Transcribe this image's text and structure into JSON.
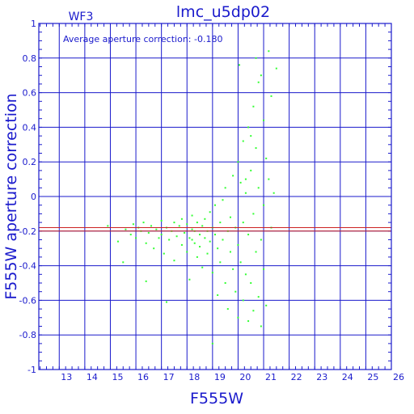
{
  "colors": {
    "axes": "#1a1acc",
    "grid": "#1a1acc",
    "points": "#33ff33",
    "average_line": "#cc2222"
  },
  "chart_data": {
    "type": "scatter",
    "title": "lmc_u5dp02",
    "panel_label": "WF3",
    "xlabel": "F555W",
    "ylabel": "F555W aperture correction",
    "annotation": "Average aperture correction: -0.180",
    "xlim": [
      12.2,
      26
    ],
    "ylim": [
      -1,
      1
    ],
    "x_ticks": [
      13,
      14,
      15,
      16,
      17,
      18,
      19,
      20,
      21,
      22,
      23,
      24,
      25,
      26
    ],
    "y_ticks": [
      -1,
      -0.8,
      -0.6,
      -0.4,
      -0.2,
      0,
      0.2,
      0.4,
      0.6,
      0.8,
      1
    ],
    "y_tick_labels": [
      "-1",
      "-0.8",
      "-0.6",
      "-0.4",
      "-0.2",
      "0",
      "0.2",
      "0.4",
      "0.6",
      "0.8",
      "1"
    ],
    "grid": true,
    "average_lines": [
      -0.18,
      -0.2
    ],
    "points": [
      [
        14.9,
        -0.17
      ],
      [
        15.3,
        -0.26
      ],
      [
        15.5,
        -0.38
      ],
      [
        15.6,
        -0.19
      ],
      [
        15.8,
        -0.22
      ],
      [
        15.9,
        -0.16
      ],
      [
        16.0,
        -0.24
      ],
      [
        16.1,
        -0.18
      ],
      [
        16.2,
        -0.2
      ],
      [
        16.3,
        -0.15
      ],
      [
        16.4,
        -0.27
      ],
      [
        16.4,
        -0.49
      ],
      [
        16.5,
        -0.21
      ],
      [
        16.6,
        -0.17
      ],
      [
        16.7,
        -0.3
      ],
      [
        16.8,
        -0.19
      ],
      [
        16.9,
        -0.24
      ],
      [
        17.0,
        -0.14
      ],
      [
        17.0,
        -0.22
      ],
      [
        17.1,
        -0.33
      ],
      [
        17.2,
        -0.18
      ],
      [
        17.2,
        -0.61
      ],
      [
        17.3,
        -0.25
      ],
      [
        17.4,
        -0.2
      ],
      [
        17.5,
        -0.15
      ],
      [
        17.5,
        -0.37
      ],
      [
        17.6,
        -0.23
      ],
      [
        17.7,
        -0.17
      ],
      [
        17.8,
        -0.28
      ],
      [
        17.8,
        -0.13
      ],
      [
        17.9,
        -0.21
      ],
      [
        18.0,
        -0.32
      ],
      [
        18.0,
        -0.16
      ],
      [
        18.1,
        -0.24
      ],
      [
        18.1,
        -0.48
      ],
      [
        18.2,
        -0.19
      ],
      [
        18.2,
        -0.11
      ],
      [
        18.3,
        -0.27
      ],
      [
        18.3,
        -0.2
      ],
      [
        18.4,
        -0.35
      ],
      [
        18.4,
        -0.15
      ],
      [
        18.5,
        -0.22
      ],
      [
        18.5,
        -0.29
      ],
      [
        18.6,
        -0.17
      ],
      [
        18.6,
        -0.41
      ],
      [
        18.7,
        -0.24
      ],
      [
        18.7,
        -0.13
      ],
      [
        18.8,
        -0.2
      ],
      [
        18.8,
        -0.33
      ],
      [
        18.9,
        -0.26
      ],
      [
        18.9,
        -0.09
      ],
      [
        19.0,
        -0.18
      ],
      [
        19.0,
        -0.44
      ],
      [
        19.1,
        -0.22
      ],
      [
        19.1,
        -0.05
      ],
      [
        19.2,
        -0.3
      ],
      [
        19.2,
        -0.57
      ],
      [
        19.3,
        -0.15
      ],
      [
        19.3,
        -0.38
      ],
      [
        19.4,
        -0.02
      ],
      [
        19.4,
        -0.25
      ],
      [
        19.5,
        -0.5
      ],
      [
        19.5,
        0.05
      ],
      [
        19.6,
        -0.2
      ],
      [
        19.6,
        -0.65
      ],
      [
        19.7,
        -0.12
      ],
      [
        19.7,
        -0.32
      ],
      [
        19.8,
        0.12
      ],
      [
        19.8,
        -0.42
      ],
      [
        19.9,
        -0.18
      ],
      [
        19.9,
        -0.55
      ],
      [
        20.0,
        0.2
      ],
      [
        20.0,
        -0.28
      ],
      [
        20.0,
        -0.7
      ],
      [
        20.05,
        0.76
      ],
      [
        20.1,
        0.08
      ],
      [
        20.1,
        -0.38
      ],
      [
        20.2,
        0.32
      ],
      [
        20.2,
        -0.15
      ],
      [
        20.2,
        -0.6
      ],
      [
        20.3,
        0.02
      ],
      [
        20.3,
        -0.45
      ],
      [
        20.4,
        0.4
      ],
      [
        20.4,
        -0.22
      ],
      [
        20.4,
        -0.72
      ],
      [
        20.5,
        0.15
      ],
      [
        20.5,
        -0.5
      ],
      [
        20.6,
        0.52
      ],
      [
        20.6,
        -0.1
      ],
      [
        20.6,
        -0.66
      ],
      [
        20.7,
        0.28
      ],
      [
        20.7,
        -0.32
      ],
      [
        20.7,
        0.8
      ],
      [
        20.8,
        0.05
      ],
      [
        20.8,
        -0.58
      ],
      [
        20.8,
        0.66
      ],
      [
        20.9,
        0.7
      ],
      [
        20.9,
        -0.25
      ],
      [
        20.9,
        -0.75
      ],
      [
        21.0,
        0.44
      ],
      [
        21.0,
        -0.05
      ],
      [
        21.0,
        -0.42
      ],
      [
        21.1,
        0.22
      ],
      [
        21.1,
        -0.63
      ],
      [
        21.2,
        0.84
      ],
      [
        21.2,
        0.1
      ],
      [
        21.3,
        -0.18
      ],
      [
        21.3,
        0.58
      ],
      [
        21.4,
        0.02
      ],
      [
        21.5,
        0.74
      ],
      [
        19.0,
        -0.85
      ],
      [
        20.5,
        0.35
      ],
      [
        20.3,
        0.1
      ],
      [
        18.2,
        -0.25
      ]
    ]
  }
}
